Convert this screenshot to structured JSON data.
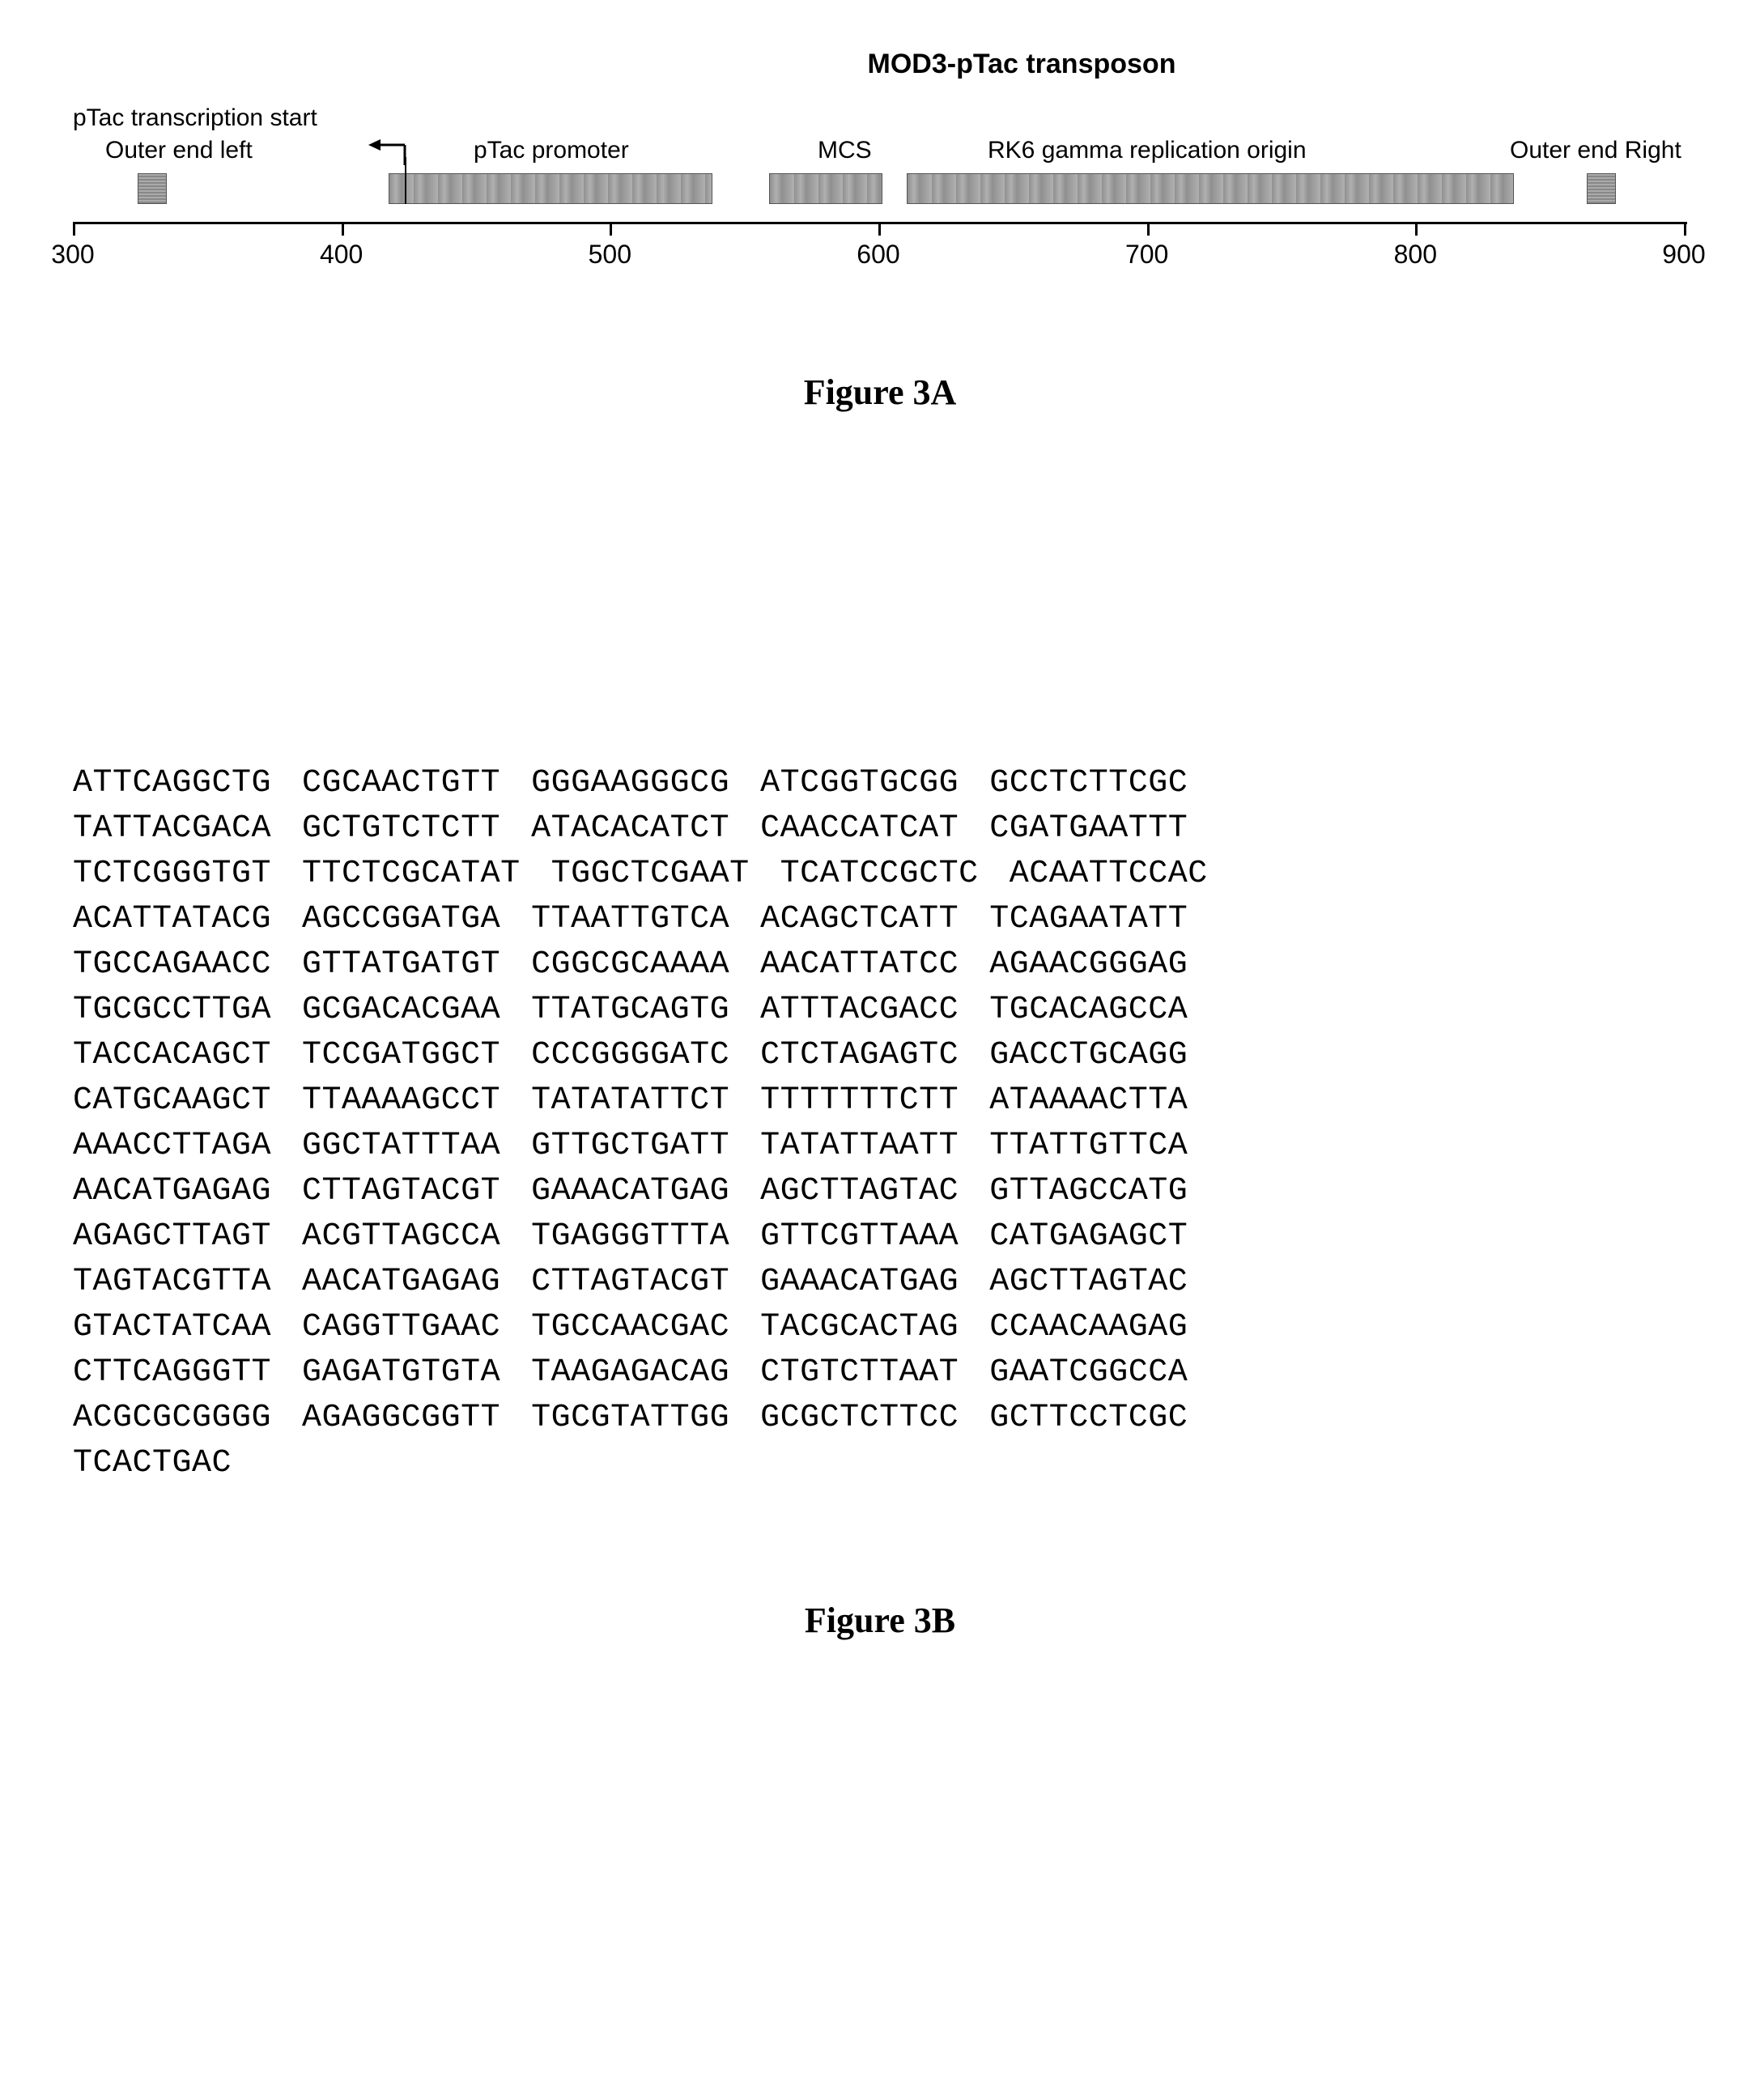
{
  "diagram": {
    "title": "MOD3-pTac transposon",
    "labels": {
      "transcription_start": "pTac transcription start",
      "outer_end_left": "Outer end left",
      "ptac_promoter": "pTac promoter",
      "mcs": "MCS",
      "rk6": "RK6 gamma replication origin",
      "outer_end_right": "Outer end Right"
    },
    "ruler": {
      "start": 300,
      "end": 900,
      "step": 100,
      "ticks": [
        300,
        400,
        500,
        600,
        700,
        800,
        900
      ]
    },
    "bars": {
      "outer_left": {
        "pos": 300,
        "width": 36
      },
      "ptac_promoter": {
        "start": 395,
        "end": 550
      },
      "mcs": {
        "start": 560,
        "end": 610
      },
      "rk6": {
        "start": 620,
        "end": 870
      },
      "outer_right": {
        "pos": 890,
        "width": 36
      }
    },
    "colors": {
      "bar_fill": "#909090",
      "ruler_line": "#000000",
      "background": "#ffffff"
    }
  },
  "figure_a_caption": "Figure 3A",
  "figure_b_caption": "Figure 3B",
  "sequence": [
    [
      "ATTCAGGCTG",
      "CGCAACTGTT",
      "GGGAAGGGCG",
      "ATCGGTGCGG",
      "GCCTCTTCGC"
    ],
    [
      "TATTACGACA",
      "GCTGTCTCTT",
      "ATACACATCT",
      "CAACCATCAT",
      "CGATGAATTT"
    ],
    [
      "TCTCGGGTGT",
      "TTCTCGCATAT",
      "TGGCTCGAAT",
      "TCATCCGCTC",
      "ACAATTCCAC"
    ],
    [
      "ACATTATACG",
      "AGCCGGATGA",
      "TTAATTGTCA",
      "ACAGCTCATT",
      "TCAGAATATT"
    ],
    [
      "TGCCAGAACC",
      "GTTATGATGT",
      "CGGCGCAAAA",
      "AACATTATCC",
      "AGAACGGGAG"
    ],
    [
      "TGCGCCTTGA",
      "GCGACACGAA",
      "TTATGCAGTG",
      "ATTTACGACC",
      "TGCACAGCCA"
    ],
    [
      "TACCACAGCT",
      "TCCGATGGCT",
      "CCCGGGGATC",
      "CTCTAGAGTC",
      "GACCTGCAGG"
    ],
    [
      "CATGCAAGCT",
      "TTAAAAGCCT",
      "TATATATTCT",
      "TTTTTTTCTT",
      "ATAAAACTTA"
    ],
    [
      "AAACCTTAGA",
      "GGCTATTTAA",
      "GTTGCTGATT",
      "TATATTAATT",
      "TTATTGTTCA"
    ],
    [
      "AACATGAGAG",
      "CTTAGTACGT",
      "GAAACATGAG",
      "AGCTTAGTAC",
      "GTTAGCCATG"
    ],
    [
      "AGAGCTTAGT",
      "ACGTTAGCCA",
      "TGAGGGTTTA",
      "GTTCGTTAAA",
      "CATGAGAGCT"
    ],
    [
      "TAGTACGTTA",
      "AACATGAGAG",
      "CTTAGTACGT",
      "GAAACATGAG",
      "AGCTTAGTAC"
    ],
    [
      "GTACTATCAA",
      "CAGGTTGAAC",
      "TGCCAACGAC",
      "TACGCACTAG",
      "CCAACAAGAG"
    ],
    [
      "CTTCAGGGTT",
      "GAGATGTGTA",
      "TAAGAGACAG",
      "CTGTCTTAAT",
      "GAATCGGCCA"
    ],
    [
      "ACGCGCGGGG",
      "AGAGGCGGTT",
      "TGCGTATTGG",
      "GCGCTCTTCC",
      "GCTTCCTCGC"
    ],
    [
      "TCACTGAC"
    ]
  ]
}
